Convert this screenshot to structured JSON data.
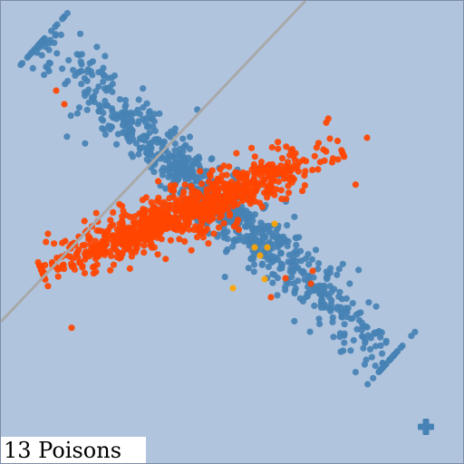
{
  "status": {
    "poison_count_label": "13 Poisons"
  },
  "colors": {
    "background": "#b0c4de",
    "clean_point": "#4682b4",
    "poison_point": "#ff4500",
    "selected_point": "#ffa500",
    "decision_boundary": "#a9a9a9",
    "add_button": "#4682b4"
  },
  "icons": {
    "add_button": "plus-icon"
  },
  "canvas": {
    "description_items": [
      "clean-points",
      "poison-points",
      "highlighted-points",
      "decision-boundary"
    ]
  }
}
